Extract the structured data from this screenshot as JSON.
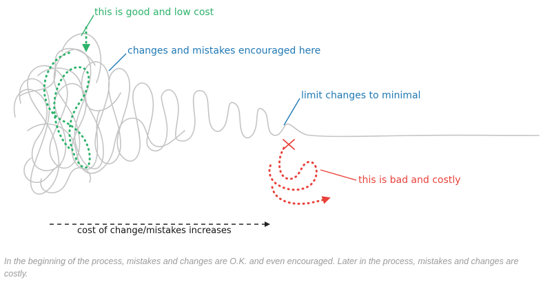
{
  "labels": {
    "good": "this is good and low cost",
    "encouraged": "changes and mistakes encouraged here",
    "limit": "limit changes to minimal",
    "bad": "this is bad and costly",
    "cost_axis": "cost of change/mistakes increases"
  },
  "caption": "In the beginning of the process, mistakes and changes are O.K. and even encouraged. Later in the process, mistakes and changes are costly.",
  "colors": {
    "scribble": "#c4c4c4",
    "good": "#2db36a",
    "callout": "#1f78b4",
    "bad": "#e8413a",
    "axis": "#222222",
    "caption": "#9a9a9a"
  },
  "icons": {
    "mistake_mark": "cross-icon"
  }
}
